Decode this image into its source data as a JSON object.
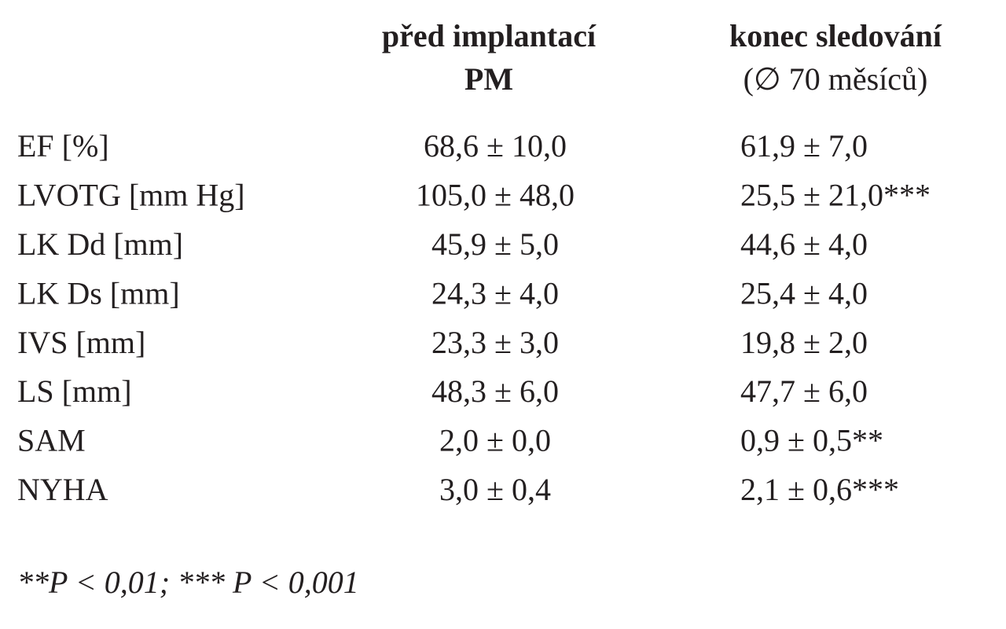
{
  "table": {
    "header": {
      "columns": [
        {
          "lines": [
            "před implantací",
            "PM"
          ]
        },
        {
          "lines": [
            "konec sledování",
            "(∅ 70 měsíců)"
          ]
        }
      ]
    },
    "rows": [
      [
        "EF [%]",
        "68,6 ± 10,0",
        "61,9 ± 7,0"
      ],
      [
        "LVOTG [mm Hg]",
        "105,0 ± 48,0",
        "25,5 ± 21,0***"
      ],
      [
        "LK Dd [mm]",
        "45,9 ± 5,0",
        "44,6 ± 4,0"
      ],
      [
        "LK Ds [mm]",
        "24,3 ± 4,0",
        "25,4 ± 4,0"
      ],
      [
        "IVS [mm]",
        "23,3 ± 3,0",
        "19,8 ± 2,0"
      ],
      [
        "LS [mm]",
        "48,3 ± 6,0",
        "47,7 ± 6,0"
      ],
      [
        "SAM",
        "2,0 ± 0,0",
        "0,9 ± 0,5**"
      ],
      [
        "NYHA",
        "3,0 ± 0,4",
        "2,1 ± 0,6***"
      ]
    ],
    "footnote": "**P < 0,01; *** P < 0,001"
  }
}
